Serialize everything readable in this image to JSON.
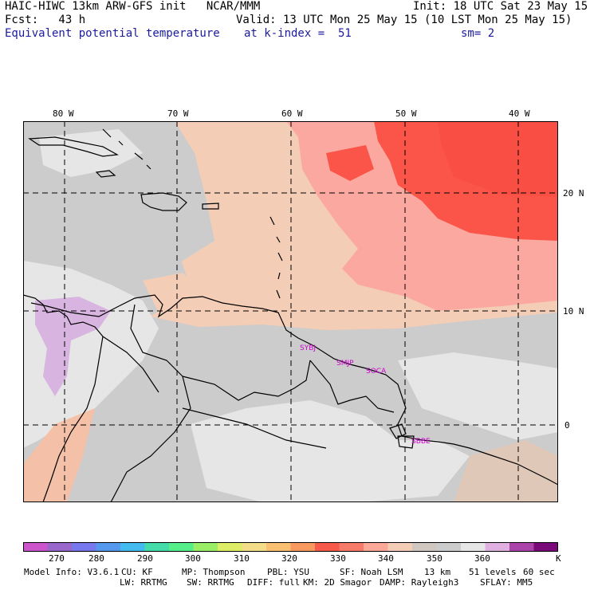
{
  "header": {
    "line1_left": "HAIC-HIWC 13km ARW-GFS init   NCAR/MMM",
    "line1_right": "Init: 18 UTC Sat 23 May 15",
    "line2_left": "Fcst:   43 h",
    "line2_right": "Valid: 13 UTC Mon 25 May 15 (10 LST Mon 25 May 15)",
    "line3_field": "Equivalent potential temperature",
    "line3_level": "at k-index =  51",
    "line3_smooth": "sm= 2"
  },
  "map": {
    "lon_labels": [
      "80 W",
      "70 W",
      "60 W",
      "50 W",
      "40 W"
    ],
    "lat_labels": [
      "20 N",
      "10 N",
      "0"
    ],
    "stations": [
      "SYBJ",
      "SMJP",
      "SOCA",
      "SBBE"
    ],
    "field_colors": {
      "peak": "#fb5448",
      "high": "#fba8a0",
      "mid": "#f4cdb6",
      "neutral": "#cccccc",
      "low": "#e6e6e6",
      "coldest": "#d8b4e0"
    }
  },
  "colorbar": {
    "colors": [
      "#cc55cc",
      "#9966cc",
      "#7777ee",
      "#5599ee",
      "#44bbee",
      "#44ddaa",
      "#55ee88",
      "#99ee66",
      "#ddee66",
      "#f4dd88",
      "#f8c070",
      "#f89a60",
      "#f75a4a",
      "#f87a68",
      "#fba898",
      "#f4cdb6",
      "#d0c8c0",
      "#cccccc",
      "#e6e6e6",
      "#e0b0e0",
      "#aa44aa",
      "#7a0a7a"
    ],
    "labels": [
      "270",
      "280",
      "290",
      "300",
      "310",
      "320",
      "330",
      "340",
      "350",
      "360",
      "K"
    ]
  },
  "model_info": {
    "line1": [
      "Model Info: V3.6.1",
      "CU: KF",
      "MP: Thompson",
      "PBL: YSU",
      "SF: Noah LSM",
      "13 km",
      "51 levels",
      "60 sec"
    ],
    "line2": [
      "LW: RRTMG",
      "SW: RRTMG",
      "DIFF: full",
      "KM: 2D Smagor",
      "DAMP: Rayleigh3",
      "SFLAY: MM5"
    ]
  }
}
